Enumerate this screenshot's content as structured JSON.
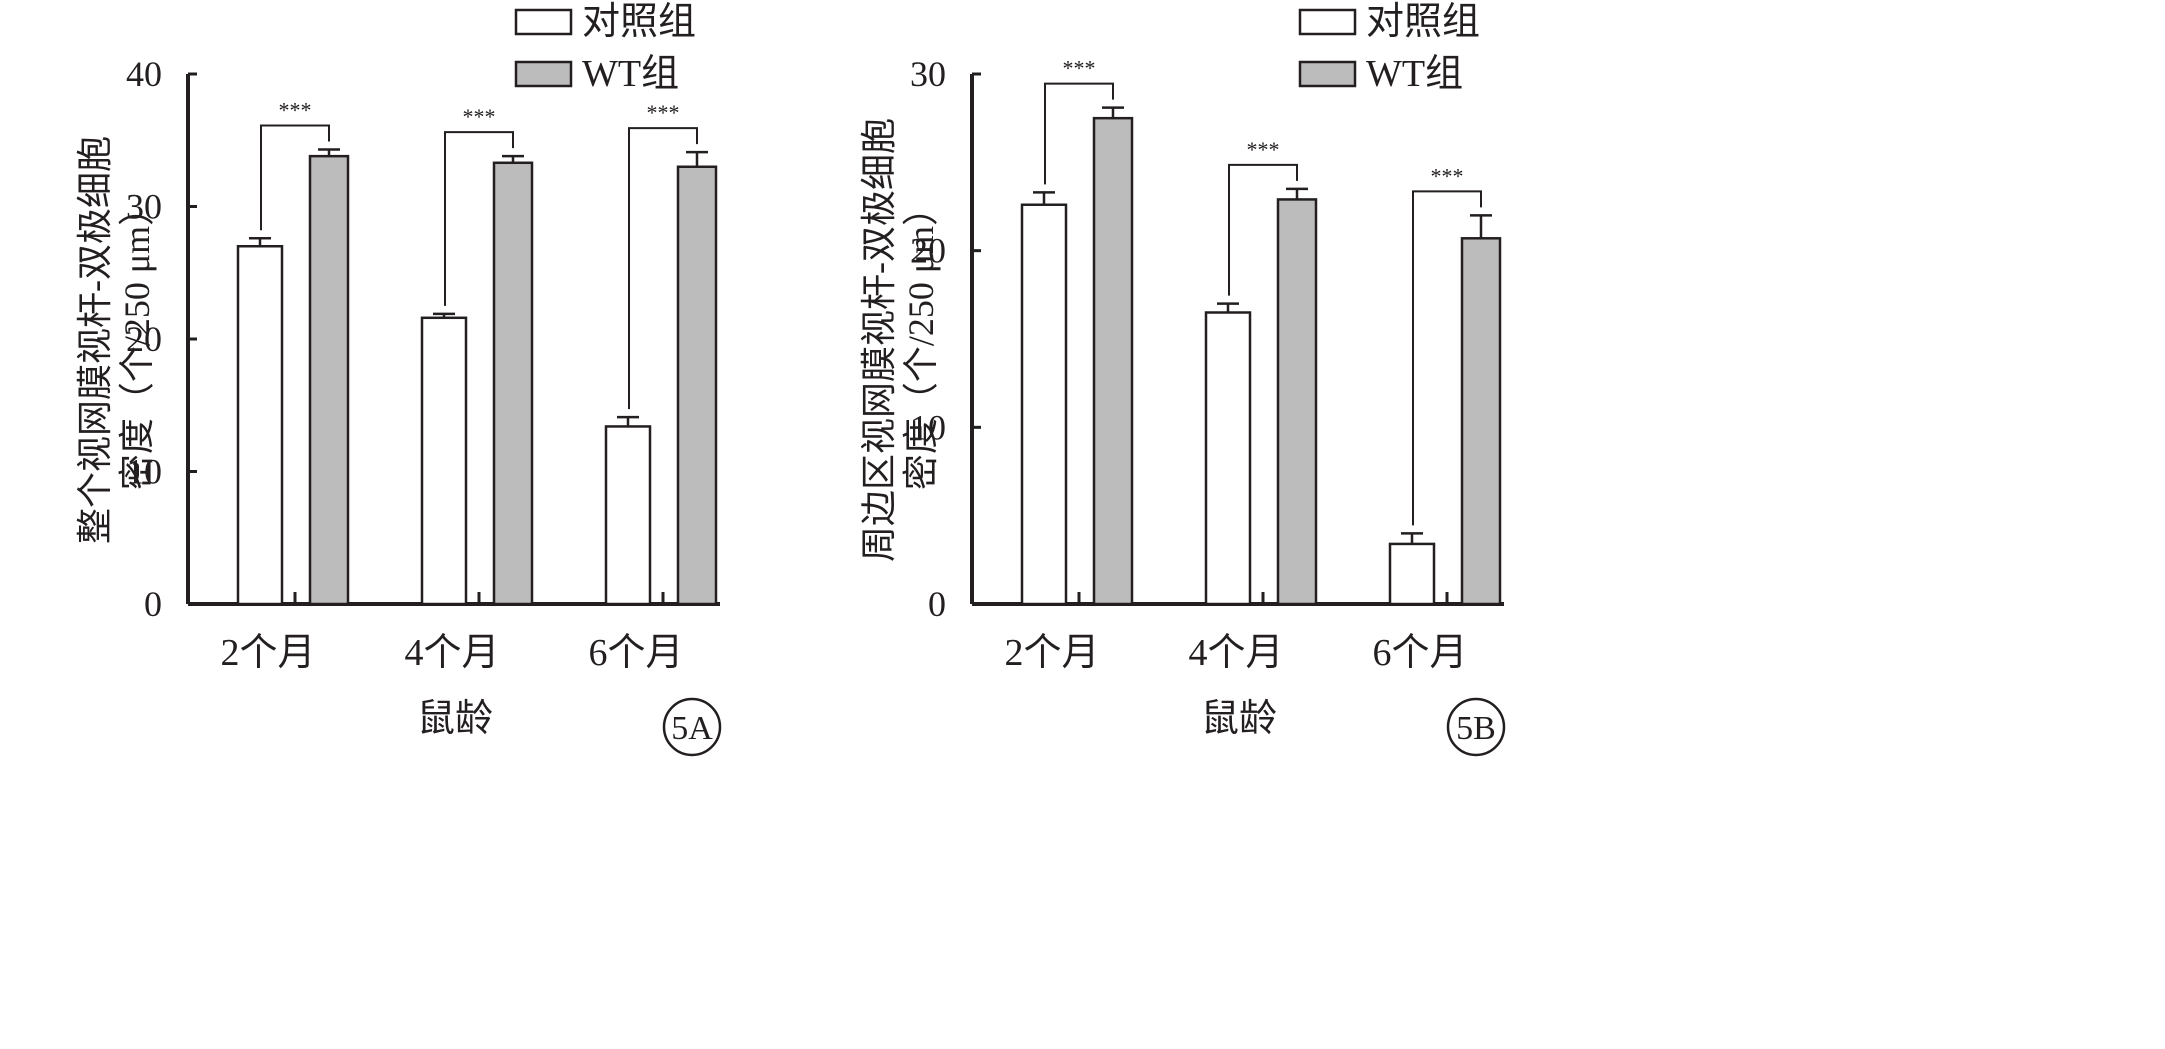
{
  "colors": {
    "control": "#ffffff",
    "wt": "#bcbcbc",
    "ink": "#231f20"
  },
  "chart_data": [
    {
      "type": "bar",
      "panel_label": "5A",
      "ylabel_lines": [
        "整个视网膜视杆-双极细胞",
        "密度（个/250 μm）"
      ],
      "xlabel": "鼠龄",
      "categories": [
        "2个月",
        "4个月",
        "6个月"
      ],
      "ylim": [
        0,
        40
      ],
      "yticks": [
        "0",
        "10",
        "20",
        "30",
        "40"
      ],
      "series": [
        {
          "name": "对照组",
          "color": "#ffffff",
          "values": [
            27.0,
            21.6,
            13.4
          ],
          "errors": [
            0.6,
            0.3,
            0.7
          ]
        },
        {
          "name": "WT组",
          "color": "#bcbcbc",
          "values": [
            33.8,
            33.3,
            33.0
          ],
          "errors": [
            0.5,
            0.5,
            1.1
          ]
        }
      ],
      "significance": [
        "***",
        "***",
        "***"
      ],
      "legend_position": "top-right",
      "grid": false
    },
    {
      "type": "bar",
      "panel_label": "5B",
      "ylabel_lines": [
        "周边区视网膜视杆-双极细胞",
        "密度（个/250 μm）"
      ],
      "xlabel": "鼠龄",
      "categories": [
        "2个月",
        "4个月",
        "6个月"
      ],
      "ylim": [
        0,
        30
      ],
      "yticks": [
        "0",
        "10",
        "20",
        "30"
      ],
      "series": [
        {
          "name": "对照组",
          "color": "#ffffff",
          "values": [
            22.6,
            16.5,
            3.4
          ],
          "errors": [
            0.7,
            0.5,
            0.6
          ]
        },
        {
          "name": "WT组",
          "color": "#bcbcbc",
          "values": [
            27.5,
            22.9,
            20.7
          ],
          "errors": [
            0.6,
            0.6,
            1.3
          ]
        }
      ],
      "significance": [
        "***",
        "***",
        "***"
      ],
      "legend_position": "top-right",
      "grid": false
    }
  ]
}
